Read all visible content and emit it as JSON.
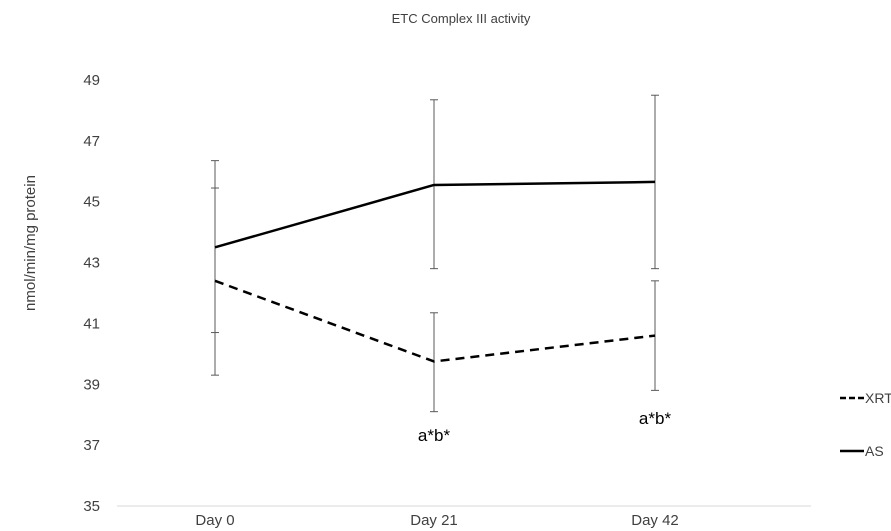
{
  "chart_data": {
    "type": "line",
    "title": "ETC Complex III activity",
    "xlabel": "",
    "ylabel": "nmol/min/mg protein",
    "categories": [
      "Day 0",
      "Day 21",
      "Day 42"
    ],
    "ylim": [
      35,
      49
    ],
    "yticks": [
      35,
      37,
      39,
      41,
      43,
      45,
      47,
      49
    ],
    "grid": false,
    "legend_position": "right",
    "series": [
      {
        "name": "XRT",
        "style": "dashed",
        "color": "#000000",
        "values": [
          42.4,
          39.75,
          40.6
        ],
        "error_low": [
          39.3,
          38.1,
          38.8
        ],
        "error_high": [
          45.45,
          41.35,
          42.4
        ]
      },
      {
        "name": "AS",
        "style": "solid",
        "color": "#000000",
        "values": [
          43.5,
          45.55,
          45.65
        ],
        "error_low": [
          40.7,
          42.8,
          42.8
        ],
        "error_high": [
          46.35,
          48.35,
          48.5
        ]
      }
    ],
    "annotations": [
      {
        "category": "Day 21",
        "text": "a*b*"
      },
      {
        "category": "Day 42",
        "text": "a*b*"
      }
    ]
  }
}
